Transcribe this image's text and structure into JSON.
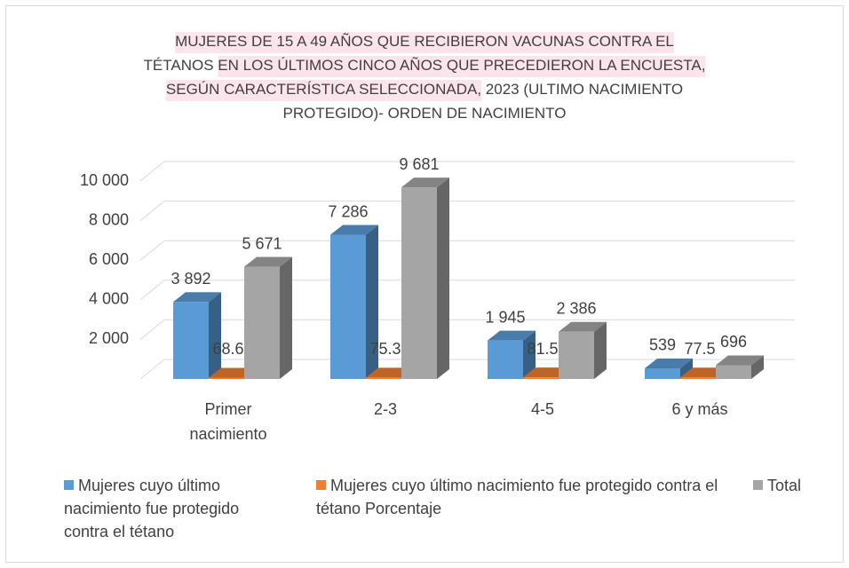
{
  "chart_data": {
    "type": "bar3d",
    "title_lines": [
      [
        {
          "text": "MUJERES DE 15 A 49 AÑOS QUE RECIBIERON VACUNAS CONTRA  EL",
          "highlight": true
        }
      ],
      [
        {
          "text": "TÉTANOS ",
          "highlight": false
        },
        {
          "text": "EN LOS ÚLTIMOS CINCO AÑOS QUE PRECEDIERON LA ENCUESTA,",
          "highlight": true
        }
      ],
      [
        {
          "text": "SEGÚN CARACTERÍSTICA SELECCIONADA,",
          "highlight": true
        },
        {
          "text": " 2023 (ULTIMO NACIMIENTO",
          "highlight": false
        }
      ],
      [
        {
          "text": "PROTEGIDO)- ORDEN DE NACIMIENTO",
          "highlight": false
        }
      ]
    ],
    "categories": [
      [
        "Primer",
        "nacimiento"
      ],
      [
        "2-3"
      ],
      [
        "4-5"
      ],
      [
        "6 y más"
      ]
    ],
    "series": [
      {
        "name": "Mujeres cuyo último nacimiento fue protegido contra el tétano",
        "color": "#5b9bd5",
        "values": [
          3892,
          7286,
          1945,
          539
        ],
        "value_labels": [
          "3 892",
          "7 286",
          "1 945",
          "539"
        ]
      },
      {
        "name": "Mujeres cuyo último nacimiento fue protegido contra el tétano Porcentaje",
        "color": "#ed7d31",
        "values": [
          68.6,
          75.3,
          81.5,
          77.5
        ]
      },
      {
        "name": "Total",
        "color": "#a5a5a5",
        "values": [
          5671,
          9681,
          2386,
          696
        ],
        "value_labels": [
          "5 671",
          "9 681",
          "2 386",
          "696"
        ]
      }
    ],
    "ylim": [
      0,
      10000
    ],
    "yticks": [
      {
        "value": 2000,
        "label": "2 000"
      },
      {
        "value": 4000,
        "label": "4 000"
      },
      {
        "value": 6000,
        "label": "6 000"
      },
      {
        "value": 8000,
        "label": "8 000"
      },
      {
        "value": 10000,
        "label": "10 000"
      }
    ],
    "grid": true
  }
}
